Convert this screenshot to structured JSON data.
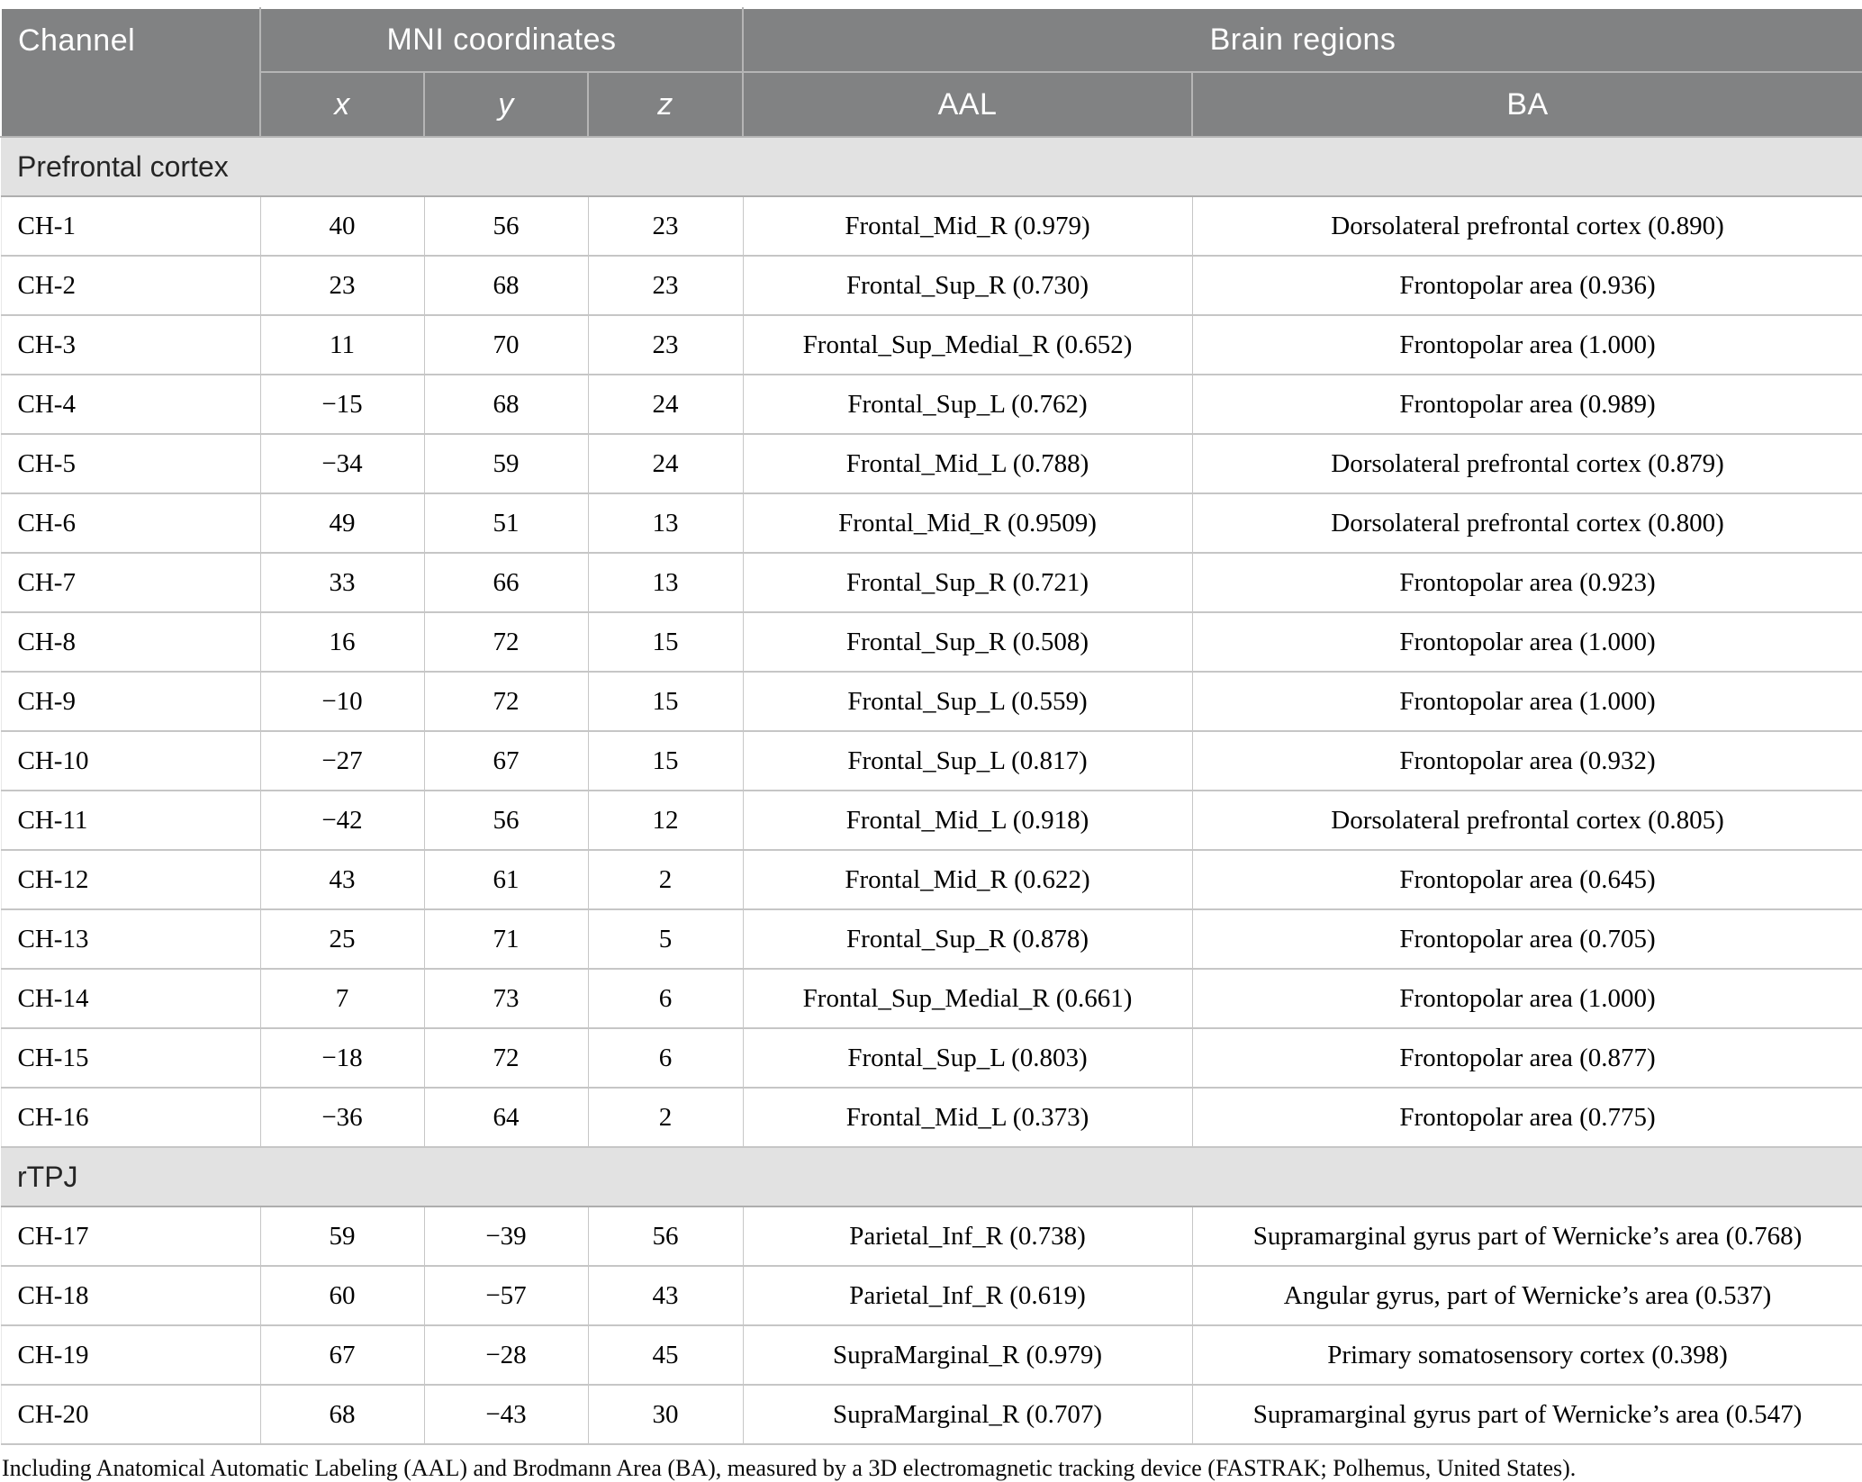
{
  "header": {
    "channel": "Channel",
    "mni_group": "MNI coordinates",
    "brain_group": "Brain regions",
    "x": "x",
    "y": "y",
    "z": "z",
    "aal": "AAL",
    "ba": "BA"
  },
  "sections": [
    {
      "label": "Prefrontal cortex",
      "rows": [
        {
          "channel": "CH-1",
          "x": "40",
          "y": "56",
          "z": "23",
          "aal": "Frontal_Mid_R (0.979)",
          "ba": "Dorsolateral prefrontal cortex (0.890)"
        },
        {
          "channel": "CH-2",
          "x": "23",
          "y": "68",
          "z": "23",
          "aal": "Frontal_Sup_R (0.730)",
          "ba": "Frontopolar area (0.936)"
        },
        {
          "channel": "CH-3",
          "x": "11",
          "y": "70",
          "z": "23",
          "aal": "Frontal_Sup_Medial_R (0.652)",
          "ba": "Frontopolar area (1.000)"
        },
        {
          "channel": "CH-4",
          "x": "−15",
          "y": "68",
          "z": "24",
          "aal": "Frontal_Sup_L (0.762)",
          "ba": "Frontopolar area (0.989)"
        },
        {
          "channel": "CH-5",
          "x": "−34",
          "y": "59",
          "z": "24",
          "aal": "Frontal_Mid_L (0.788)",
          "ba": "Dorsolateral prefrontal cortex (0.879)"
        },
        {
          "channel": "CH-6",
          "x": "49",
          "y": "51",
          "z": "13",
          "aal": "Frontal_Mid_R (0.9509)",
          "ba": "Dorsolateral prefrontal cortex (0.800)"
        },
        {
          "channel": "CH-7",
          "x": "33",
          "y": "66",
          "z": "13",
          "aal": "Frontal_Sup_R (0.721)",
          "ba": "Frontopolar area (0.923)"
        },
        {
          "channel": "CH-8",
          "x": "16",
          "y": "72",
          "z": "15",
          "aal": "Frontal_Sup_R (0.508)",
          "ba": "Frontopolar area (1.000)"
        },
        {
          "channel": "CH-9",
          "x": "−10",
          "y": "72",
          "z": "15",
          "aal": "Frontal_Sup_L (0.559)",
          "ba": "Frontopolar area (1.000)"
        },
        {
          "channel": "CH-10",
          "x": "−27",
          "y": "67",
          "z": "15",
          "aal": "Frontal_Sup_L (0.817)",
          "ba": "Frontopolar area (0.932)"
        },
        {
          "channel": "CH-11",
          "x": "−42",
          "y": "56",
          "z": "12",
          "aal": "Frontal_Mid_L (0.918)",
          "ba": "Dorsolateral prefrontal cortex (0.805)"
        },
        {
          "channel": "CH-12",
          "x": "43",
          "y": "61",
          "z": "2",
          "aal": "Frontal_Mid_R (0.622)",
          "ba": "Frontopolar area (0.645)"
        },
        {
          "channel": "CH-13",
          "x": "25",
          "y": "71",
          "z": "5",
          "aal": "Frontal_Sup_R (0.878)",
          "ba": "Frontopolar area (0.705)"
        },
        {
          "channel": "CH-14",
          "x": "7",
          "y": "73",
          "z": "6",
          "aal": "Frontal_Sup_Medial_R (0.661)",
          "ba": "Frontopolar area (1.000)"
        },
        {
          "channel": "CH-15",
          "x": "−18",
          "y": "72",
          "z": "6",
          "aal": "Frontal_Sup_L (0.803)",
          "ba": "Frontopolar area (0.877)"
        },
        {
          "channel": "CH-16",
          "x": "−36",
          "y": "64",
          "z": "2",
          "aal": "Frontal_Mid_L (0.373)",
          "ba": "Frontopolar area (0.775)"
        }
      ]
    },
    {
      "label": "rTPJ",
      "rows": [
        {
          "channel": "CH-17",
          "x": "59",
          "y": "−39",
          "z": "56",
          "aal": "Parietal_Inf_R (0.738)",
          "ba": "Supramarginal gyrus part of Wernicke’s area (0.768)"
        },
        {
          "channel": "CH-18",
          "x": "60",
          "y": "−57",
          "z": "43",
          "aal": "Parietal_Inf_R (0.619)",
          "ba": "Angular gyrus, part of Wernicke’s area (0.537)"
        },
        {
          "channel": "CH-19",
          "x": "67",
          "y": "−28",
          "z": "45",
          "aal": "SupraMarginal_R (0.979)",
          "ba": "Primary somatosensory cortex (0.398)"
        },
        {
          "channel": "CH-20",
          "x": "68",
          "y": "−43",
          "z": "30",
          "aal": "SupraMarginal_R (0.707)",
          "ba": "Supramarginal gyrus part of Wernicke’s area (0.547)"
        }
      ]
    }
  ],
  "footnote": "Including Anatomical Automatic Labeling (AAL) and Brodmann Area (BA), measured by a 3D electromagnetic tracking device (FASTRAK; Polhemus, United States).",
  "colors": {
    "header_background": "#818283",
    "section_background": "#e2e2e2",
    "row_border": "#c6c6c6"
  }
}
